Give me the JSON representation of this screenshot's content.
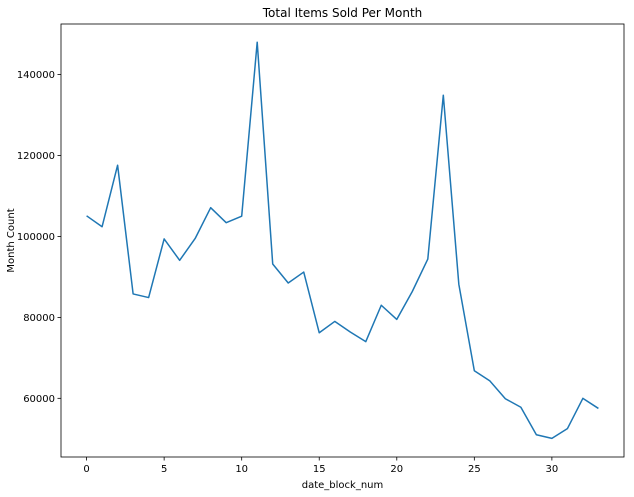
{
  "chart_data": {
    "type": "line",
    "title": "Total Items Sold Per Month",
    "xlabel": "date_block_num",
    "ylabel": "Month Count",
    "xlim": [
      -1.65,
      34.65
    ],
    "ylim": [
      45500,
      152500
    ],
    "xticks": [
      0,
      5,
      10,
      15,
      20,
      25,
      30
    ],
    "yticks": [
      60000,
      80000,
      100000,
      120000,
      140000
    ],
    "grid": false,
    "legend": "none",
    "series": [
      {
        "color": "#1f77b4",
        "x": [
          0,
          1,
          2,
          3,
          4,
          5,
          6,
          7,
          8,
          9,
          10,
          11,
          12,
          13,
          14,
          15,
          16,
          17,
          18,
          19,
          20,
          21,
          22,
          23,
          24,
          25,
          26,
          27,
          28,
          29,
          30,
          31,
          32,
          33
        ],
        "values": [
          105100,
          102400,
          117600,
          85800,
          84900,
          99400,
          94100,
          99500,
          107100,
          103400,
          105000,
          148000,
          93200,
          88500,
          91200,
          76200,
          79000,
          76400,
          74000,
          83000,
          79500,
          86400,
          94400,
          134900,
          88200,
          66800,
          64300,
          59900,
          57800,
          51000,
          50100,
          52500,
          60000,
          57500
        ]
      }
    ]
  }
}
